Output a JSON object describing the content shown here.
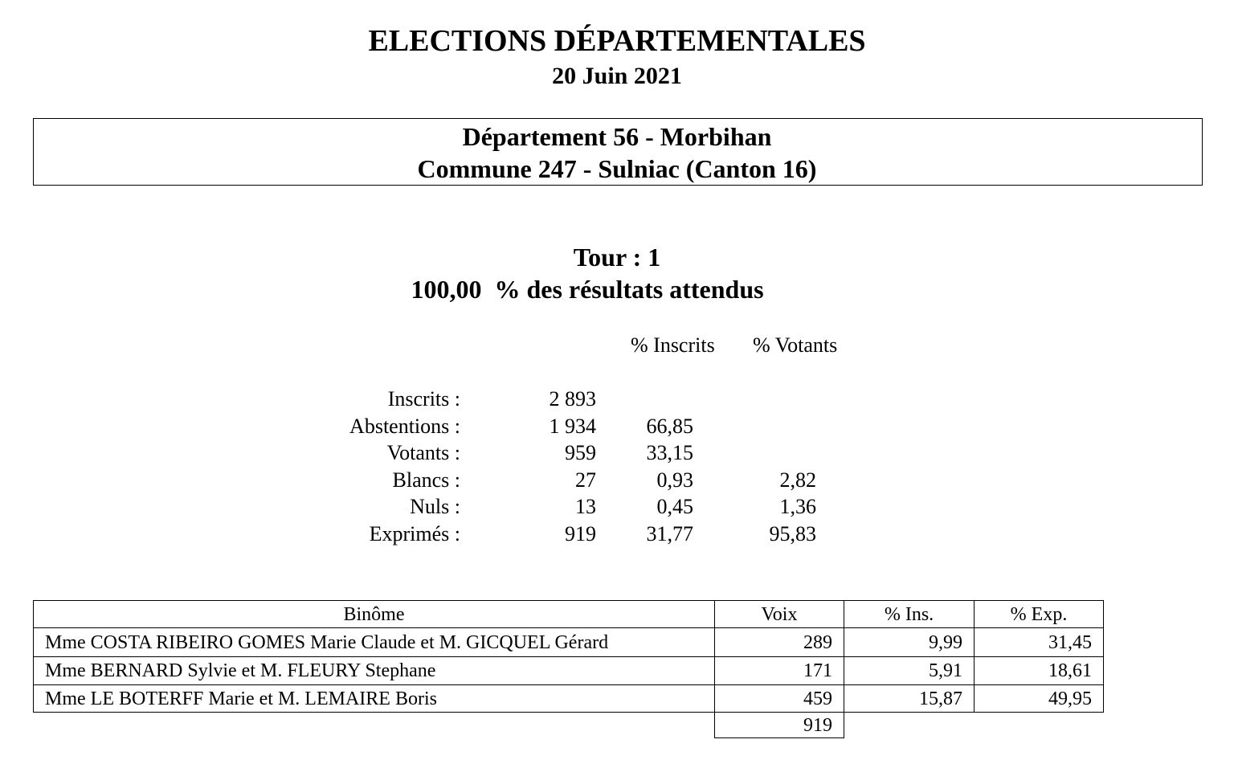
{
  "header": {
    "title": "ELECTIONS DÉPARTEMENTALES",
    "date": "20 Juin 2021"
  },
  "location": {
    "department": "Département 56 - Morbihan",
    "commune": "Commune 247 - Sulniac (Canton 16)"
  },
  "round": {
    "tour": "Tour : 1",
    "progress": "100,00  % des résultats attendus"
  },
  "stats": {
    "columns": [
      "% Inscrits",
      "% Votants"
    ],
    "rows": [
      {
        "label": "Inscrits :",
        "count": "2 893"
      },
      {
        "label": "Abstentions :",
        "count": "1 934",
        "pct_inscrits": "66,85"
      },
      {
        "label": "Votants :",
        "count": "959",
        "pct_inscrits": "33,15"
      },
      {
        "label": "Blancs :",
        "count": "27",
        "pct_inscrits": "0,93",
        "pct_votants": "2,82"
      },
      {
        "label": "Nuls :",
        "count": "13",
        "pct_inscrits": "0,45",
        "pct_votants": "1,36"
      },
      {
        "label": "Exprimés :",
        "count": "919",
        "pct_inscrits": "31,77",
        "pct_votants": "95,83"
      }
    ]
  },
  "table": {
    "headers": [
      "Binôme",
      "Voix",
      "% Ins.",
      "% Exp."
    ],
    "rows": [
      [
        "Mme COSTA RIBEIRO GOMES Marie Claude et M. GICQUEL Gérard",
        "289",
        "9,99",
        "31,45"
      ],
      [
        "Mme BERNARD Sylvie et M. FLEURY Stephane",
        "171",
        "5,91",
        "18,61"
      ],
      [
        "Mme LE BOTERFF Marie et M. LEMAIRE Boris",
        "459",
        "15,87",
        "49,95"
      ]
    ],
    "total": "919"
  }
}
